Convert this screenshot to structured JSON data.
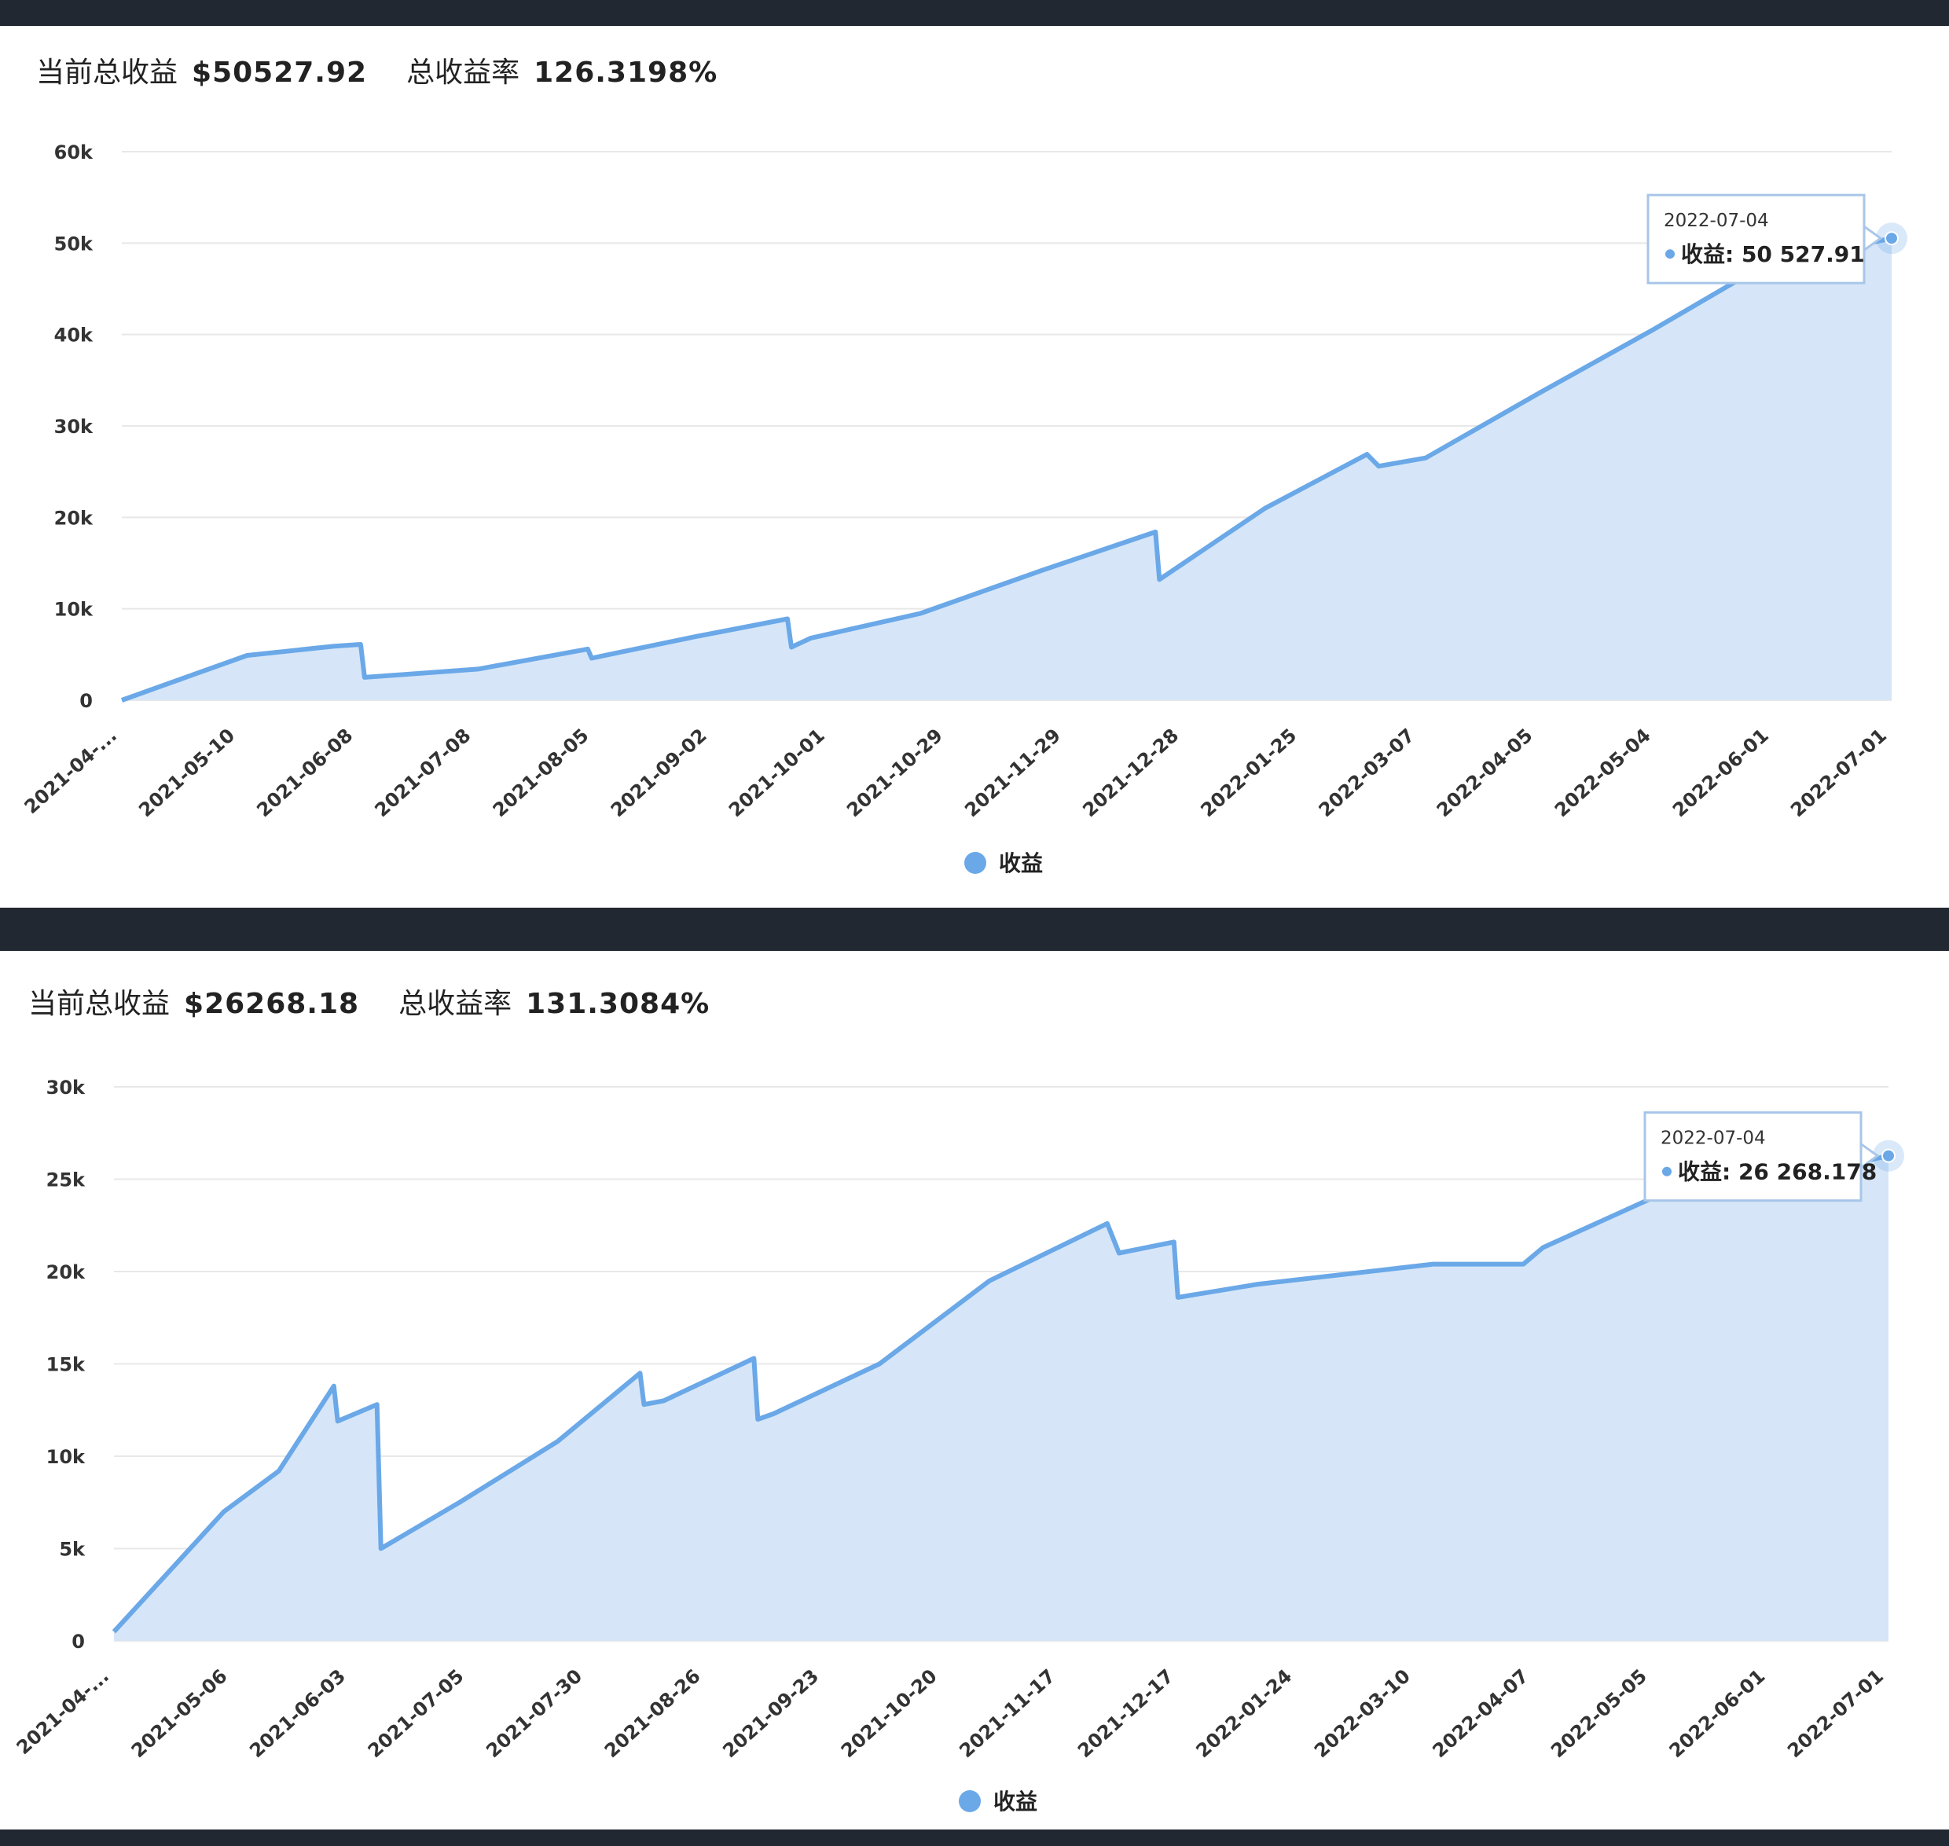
{
  "charts": [
    {
      "summary": {
        "profit_label": "当前总收益",
        "profit_value": "$50527.92",
        "rate_label": "总收益率",
        "rate_value": "126.3198%"
      },
      "tooltip": {
        "date": "2022-07-04",
        "series": "收益",
        "value": "50 527.91"
      },
      "legend": "收益"
    },
    {
      "summary": {
        "profit_label": "当前总收益",
        "profit_value": "$26268.18",
        "rate_label": "总收益率",
        "rate_value": "131.3084%"
      },
      "tooltip": {
        "date": "2022-07-04",
        "series": "收益",
        "value": "26 268.178"
      },
      "legend": "收益"
    }
  ],
  "chart_data": [
    {
      "type": "area",
      "series": [
        {
          "name": "收益",
          "color": "#6aa8e8"
        }
      ],
      "x_tick_labels": [
        "2021-04-...",
        "2021-05-10",
        "2021-06-08",
        "2021-07-08",
        "2021-08-05",
        "2021-09-02",
        "2021-10-01",
        "2021-10-29",
        "2021-11-29",
        "2021-12-28",
        "2022-01-25",
        "2022-03-07",
        "2022-04-05",
        "2022-05-04",
        "2022-06-01",
        "2022-07-01"
      ],
      "y_tick_labels": [
        "0",
        "10k",
        "20k",
        "30k",
        "40k",
        "50k",
        "60k"
      ],
      "ylim": [
        0,
        60000
      ],
      "grid": true,
      "legend_position": "bottom-center",
      "points": [
        [
          "2021-04-...",
          0
        ],
        [
          "2021-05-10",
          4900
        ],
        [
          "2021-06-01",
          5900
        ],
        [
          "2021-06-08",
          6100
        ],
        [
          "2021-06-09",
          2500
        ],
        [
          "2021-07-08",
          3400
        ],
        [
          "2021-08-05",
          5600
        ],
        [
          "2021-08-06",
          4600
        ],
        [
          "2021-09-02",
          7000
        ],
        [
          "2021-09-25",
          8900
        ],
        [
          "2021-09-26",
          5800
        ],
        [
          "2021-10-01",
          6800
        ],
        [
          "2021-10-29",
          9500
        ],
        [
          "2021-11-29",
          14200
        ],
        [
          "2021-12-28",
          18400
        ],
        [
          "2021-12-29",
          13200
        ],
        [
          "2022-01-25",
          21000
        ],
        [
          "2022-02-20",
          26900
        ],
        [
          "2022-02-23",
          25600
        ],
        [
          "2022-03-07",
          26500
        ],
        [
          "2022-04-05",
          33600
        ],
        [
          "2022-05-04",
          40500
        ],
        [
          "2022-06-01",
          47500
        ],
        [
          "2022-07-04",
          50527.91
        ]
      ]
    },
    {
      "type": "area",
      "series": [
        {
          "name": "收益",
          "color": "#6aa8e8"
        }
      ],
      "x_tick_labels": [
        "2021-04-...",
        "2021-05-06",
        "2021-06-03",
        "2021-07-05",
        "2021-07-30",
        "2021-08-26",
        "2021-09-23",
        "2021-10-20",
        "2021-11-17",
        "2021-12-17",
        "2022-01-24",
        "2022-03-10",
        "2022-04-07",
        "2022-05-05",
        "2022-06-01",
        "2022-07-01"
      ],
      "y_tick_labels": [
        "0",
        "5k",
        "10k",
        "15k",
        "20k",
        "25k",
        "30k"
      ],
      "ylim": [
        0,
        30000
      ],
      "grid": true,
      "legend_position": "bottom-center",
      "points": [
        [
          "2021-04-...",
          500
        ],
        [
          "2021-05-06",
          7000
        ],
        [
          "2021-05-20",
          9200
        ],
        [
          "2021-06-03",
          13800
        ],
        [
          "2021-06-04",
          11900
        ],
        [
          "2021-06-14",
          12800
        ],
        [
          "2021-06-15",
          5000
        ],
        [
          "2021-07-05",
          7500
        ],
        [
          "2021-07-30",
          10800
        ],
        [
          "2021-08-20",
          14500
        ],
        [
          "2021-08-21",
          12800
        ],
        [
          "2021-08-26",
          13000
        ],
        [
          "2021-09-18",
          15300
        ],
        [
          "2021-09-19",
          12000
        ],
        [
          "2021-09-23",
          12300
        ],
        [
          "2021-10-20",
          15000
        ],
        [
          "2021-11-17",
          19500
        ],
        [
          "2021-12-17",
          22600
        ],
        [
          "2021-12-20",
          21000
        ],
        [
          "2022-01-03",
          21600
        ],
        [
          "2022-01-04",
          18600
        ],
        [
          "2022-01-24",
          19300
        ],
        [
          "2022-03-10",
          20400
        ],
        [
          "2022-04-02",
          20400
        ],
        [
          "2022-04-07",
          21300
        ],
        [
          "2022-05-05",
          24000
        ],
        [
          "2022-06-01",
          24700
        ],
        [
          "2022-07-04",
          26268.178
        ]
      ]
    }
  ]
}
